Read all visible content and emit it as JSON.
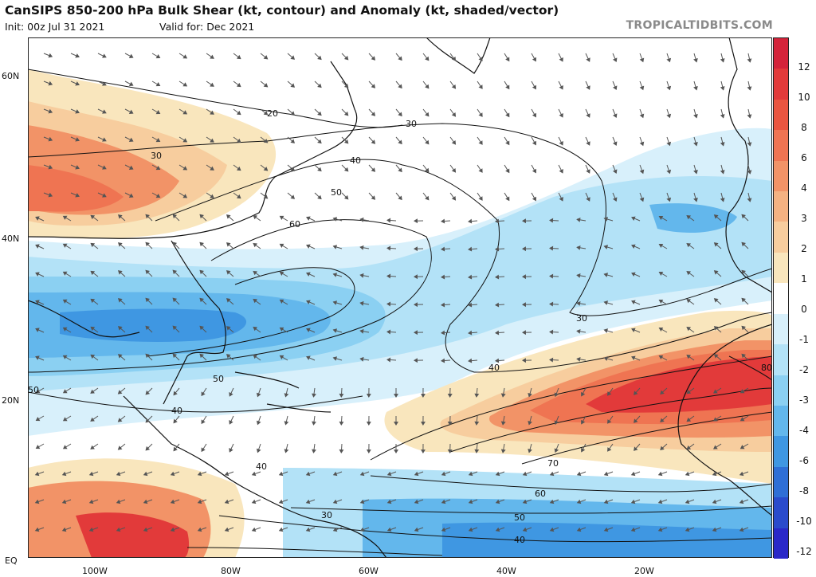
{
  "header": {
    "title": "CanSIPS 850-200 hPa Bulk Shear (kt, contour) and Anomaly (kt, shaded/vector)",
    "init": "Init: 00z Jul 31 2021",
    "valid": "Valid for: Dec 2021",
    "brand": "TROPICALTIDBITS.COM"
  },
  "axes": {
    "lat_labels": [
      "60N",
      "40N",
      "20N",
      "EQ"
    ],
    "lon_labels": [
      "100W",
      "80W",
      "60W",
      "40W",
      "20W"
    ]
  },
  "contours": [
    "20",
    "30",
    "40",
    "50",
    "60",
    "30",
    "40",
    "30",
    "50",
    "40",
    "40",
    "30",
    "70",
    "60",
    "50",
    "40",
    "80",
    "50",
    "40"
  ],
  "colorbar": {
    "labels": [
      "12",
      "10",
      "8",
      "6",
      "4",
      "3",
      "2",
      "1",
      "0",
      "-1",
      "-2",
      "-3",
      "-4",
      "-6",
      "-8",
      "-10",
      "-12"
    ],
    "colors": [
      "#d4233a",
      "#e23a3a",
      "#ea5540",
      "#ef7452",
      "#f29367",
      "#f5b282",
      "#f7cd9e",
      "#f9e6bd",
      "#ffffff",
      "#d8f0fb",
      "#b3e2f7",
      "#8bd0f2",
      "#63b7ec",
      "#3f97e2",
      "#2f6fd6",
      "#2a4bcc",
      "#2a28c8"
    ]
  },
  "colors": {
    "strong_pos": "#e23a3a",
    "pos": "#f29367",
    "weak_pos": "#f7cd9e",
    "neutral": "#ffffff",
    "weak_neg": "#b3e2f7",
    "neg": "#63b7ec",
    "strong_neg": "#3f97e2"
  }
}
